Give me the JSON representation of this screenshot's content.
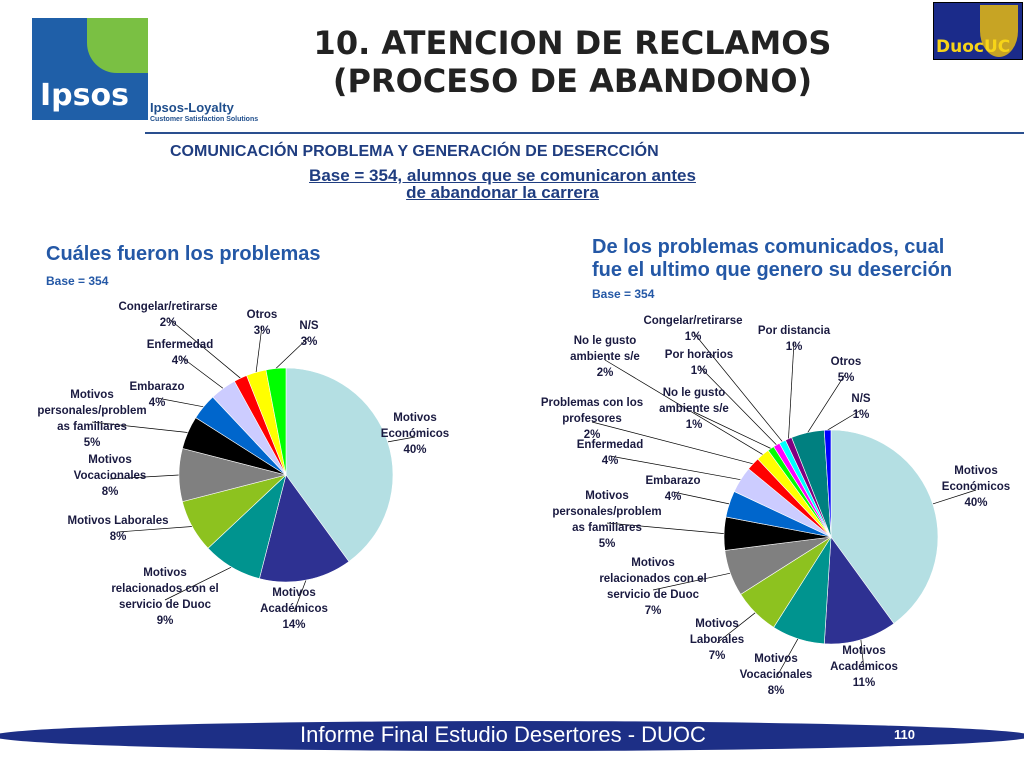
{
  "header": {
    "brand": "Ipsos",
    "brand_sub": "Ipsos-Loyalty",
    "brand_tagline": "Customer Satisfaction Solutions",
    "partner": "DuocUC",
    "title_line1": "10. ATENCION DE RECLAMOS",
    "title_line2": "(PROCESO DE ABANDONO)",
    "subtitle": "COMUNICACIÓN PROBLEMA Y GENERACIÓN DE DESERCCIÓN",
    "base_line1": "Base = 354, alumnos que se comunicaron antes",
    "base_line2": "de abandonar la carrera"
  },
  "left_panel": {
    "question": "Cuáles fueron los problemas",
    "base": "Base = 354"
  },
  "right_panel": {
    "question_line1": "De los problemas comunicados, cual",
    "question_line2": "fue el ultimo que genero su deserción",
    "base": "Base = 354"
  },
  "footer": {
    "text": "Informe Final Estudio Desertores - DUOC",
    "page": "110"
  },
  "chart_data": [
    {
      "type": "pie",
      "slices": [
        {
          "label": "Motivos Económicos",
          "value": 40,
          "color": "#b4dfe3",
          "lines": [
            "Motivos",
            "Económicos",
            "40%"
          ]
        },
        {
          "label": "Motivos Académicos",
          "value": 14,
          "color": "#2e3192",
          "lines": [
            "Motivos",
            "Académicos",
            "14%"
          ]
        },
        {
          "label": "Motivos relacionados con el servicio de Duoc",
          "value": 9,
          "color": "#00948f",
          "lines": [
            "Motivos",
            "relacionados con el",
            "servicio de Duoc",
            "9%"
          ]
        },
        {
          "label": "Motivos Laborales",
          "value": 8,
          "color": "#8dc21f",
          "lines": [
            "Motivos Laborales",
            "8%"
          ]
        },
        {
          "label": "Motivos Vocacionales",
          "value": 8,
          "color": "#808080",
          "lines": [
            "Motivos",
            "Vocacionales",
            "8%"
          ]
        },
        {
          "label": "Motivos personales/problemas familiares",
          "value": 5,
          "color": "#000000",
          "lines": [
            "Motivos",
            "personales/problem",
            "as familiares",
            "5%"
          ]
        },
        {
          "label": "Embarazo",
          "value": 4,
          "color": "#0066cc",
          "lines": [
            "Embarazo",
            "4%"
          ]
        },
        {
          "label": "Enfermedad",
          "value": 4,
          "color": "#ccccff",
          "lines": [
            "Enfermedad",
            "4%"
          ]
        },
        {
          "label": "Congelar/retirarse",
          "value": 2,
          "color": "#ff0000",
          "lines": [
            "Congelar/retirarse",
            "2%"
          ]
        },
        {
          "label": "Otros",
          "value": 3,
          "color": "#ffff00",
          "lines": [
            "Otros",
            "3%"
          ]
        },
        {
          "label": "N/S",
          "value": 3,
          "color": "#00ff00",
          "lines": [
            "N/S",
            "3%"
          ]
        }
      ]
    },
    {
      "type": "pie",
      "slices": [
        {
          "label": "Motivos Económicos",
          "value": 40,
          "color": "#b4dfe3",
          "lines": [
            "Motivos",
            "Económicos",
            "40%"
          ]
        },
        {
          "label": "Motivos Académicos",
          "value": 11,
          "color": "#2e3192",
          "lines": [
            "Motivos",
            "Académicos",
            "11%"
          ]
        },
        {
          "label": "Motivos Vocacionales",
          "value": 8,
          "color": "#00948f",
          "lines": [
            "Motivos",
            "Vocacionales",
            "8%"
          ]
        },
        {
          "label": "Motivos Laborales",
          "value": 7,
          "color": "#8dc21f",
          "lines": [
            "Motivos",
            "Laborales",
            "7%"
          ]
        },
        {
          "label": "Motivos relacionados con el servicio de Duoc",
          "value": 7,
          "color": "#808080",
          "lines": [
            "Motivos",
            "relacionados con el",
            "servicio de Duoc",
            "7%"
          ]
        },
        {
          "label": "Motivos personales/problemas familiares",
          "value": 5,
          "color": "#000000",
          "lines": [
            "Motivos",
            "personales/problem",
            "as familiares",
            "5%"
          ]
        },
        {
          "label": "Embarazo",
          "value": 4,
          "color": "#0066cc",
          "lines": [
            "Embarazo",
            "4%"
          ]
        },
        {
          "label": "Enfermedad",
          "value": 4,
          "color": "#ccccff",
          "lines": [
            "Enfermedad",
            "4%"
          ]
        },
        {
          "label": "Problemas con los profesores",
          "value": 2,
          "color": "#ff0000",
          "lines": [
            "Problemas con los",
            "profesores",
            "2%"
          ]
        },
        {
          "label": "No le gusto ambiente s/e",
          "value": 2,
          "color": "#ffff00",
          "lines": [
            "No le gusto",
            "ambiente s/e",
            "2%"
          ]
        },
        {
          "label": "No le gusto ambiente s/e",
          "value": 1,
          "color": "#00ff00",
          "lines": [
            "No le gusto",
            "ambiente s/e",
            "1%"
          ]
        },
        {
          "label": "Por horarios",
          "value": 1,
          "color": "#ff00ff",
          "lines": [
            "Por horarios",
            "1%"
          ]
        },
        {
          "label": "Congelar/retirarse",
          "value": 1,
          "color": "#00ffff",
          "lines": [
            "Congelar/retirarse",
            "1%"
          ]
        },
        {
          "label": "Por distancia",
          "value": 1,
          "color": "#800080",
          "lines": [
            "Por distancia",
            "1%"
          ]
        },
        {
          "label": "Otros",
          "value": 5,
          "color": "#008080",
          "lines": [
            "Otros",
            "5%"
          ]
        },
        {
          "label": "N/S",
          "value": 1,
          "color": "#0000ff",
          "lines": [
            "N/S",
            "1%"
          ]
        }
      ]
    }
  ]
}
